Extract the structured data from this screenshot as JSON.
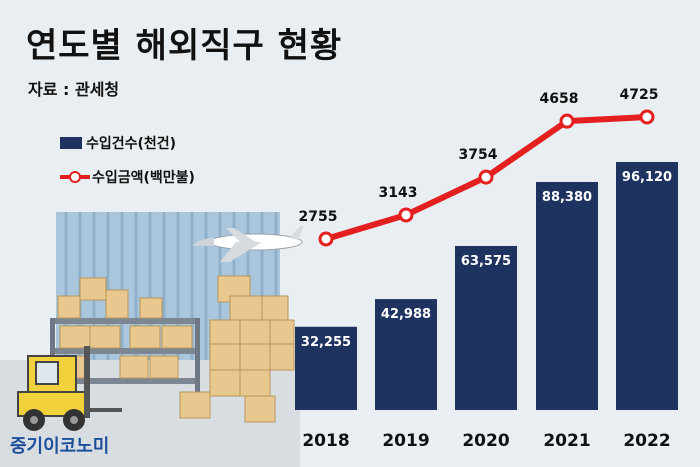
{
  "header": {
    "title": "연도별 해외직구 현황",
    "source": "자료 : 관세청"
  },
  "legend": {
    "bar_label": "수입건수(천건)",
    "line_label": "수입금액(백만불)"
  },
  "brand": "중기이코노미",
  "colors": {
    "bar": "#1f3361",
    "line": "#e41f1f",
    "background": "#e8eef2"
  },
  "chart_data": {
    "type": "bar",
    "categories": [
      "2018",
      "2019",
      "2020",
      "2021",
      "2022"
    ],
    "series": [
      {
        "name": "수입건수(천건)",
        "type": "bar",
        "values": [
          32255,
          42988,
          63575,
          88380,
          96120
        ],
        "labels": [
          "32,255",
          "42,988",
          "63,575",
          "88,380",
          "96,120"
        ]
      },
      {
        "name": "수입금액(백만불)",
        "type": "line",
        "values": [
          2755,
          3143,
          3754,
          4658,
          4725
        ],
        "labels": [
          "2755",
          "3143",
          "3754",
          "4658",
          "4725"
        ]
      }
    ],
    "legend": "top-left"
  }
}
